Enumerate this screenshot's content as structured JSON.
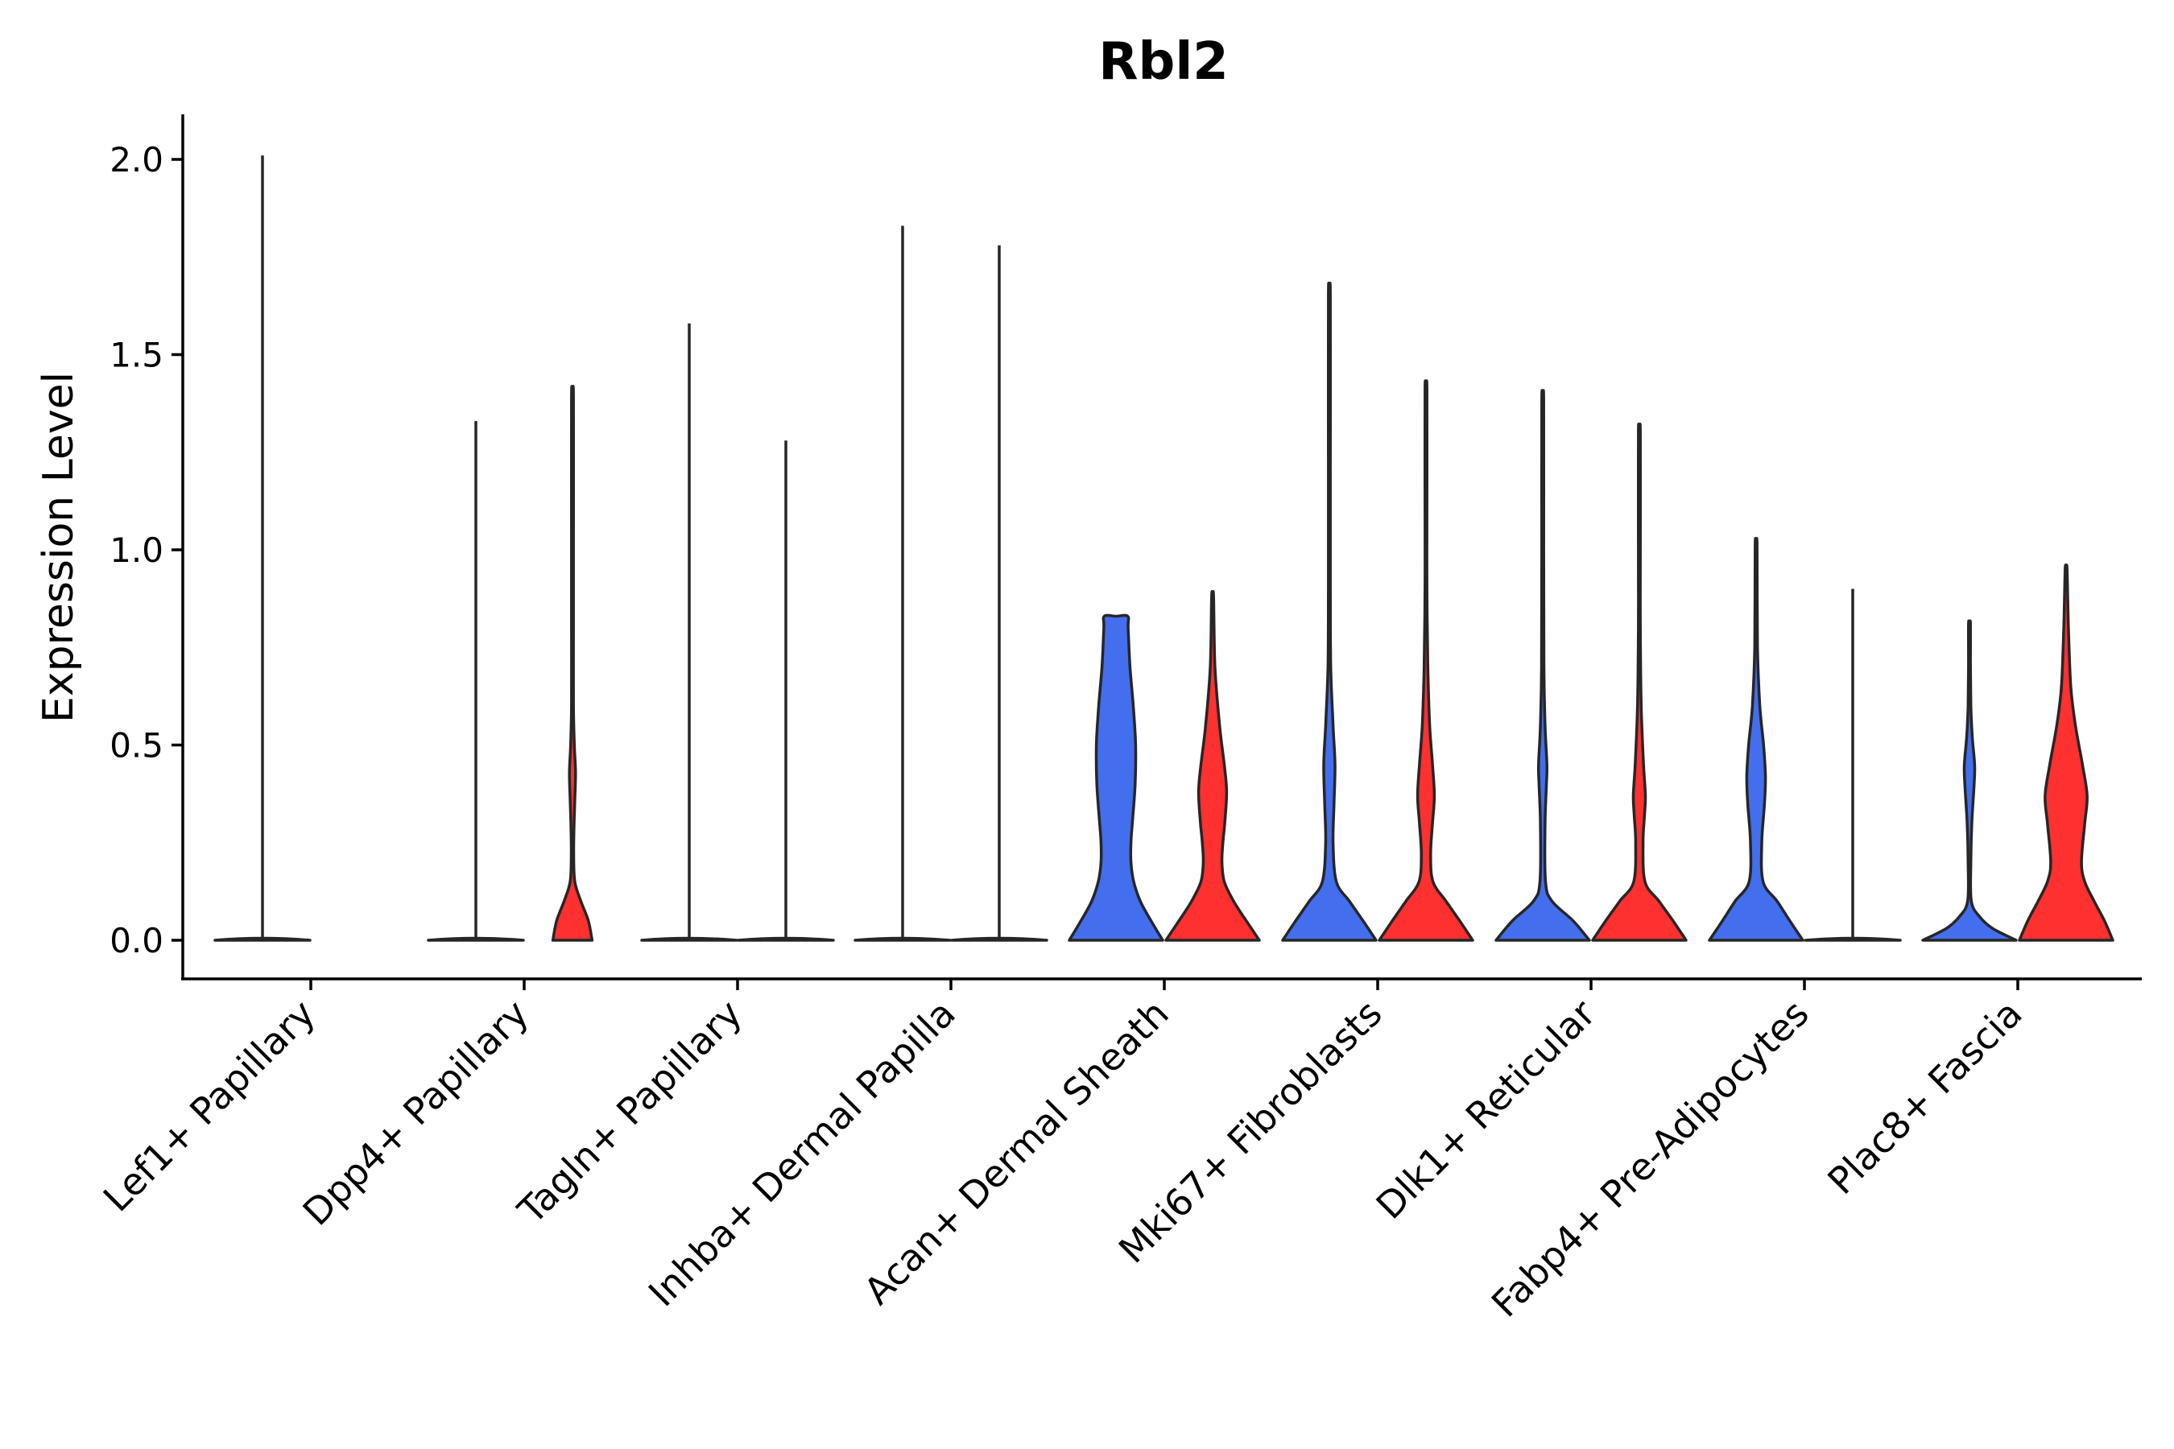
{
  "chart_data": {
    "type": "violin",
    "title": "Rbl2",
    "xlabel": "",
    "ylabel": "Expression Level",
    "ylim": [
      -0.1,
      2.12
    ],
    "yticks": [
      "0.0",
      "0.5",
      "1.0",
      "1.5",
      "2.0"
    ],
    "grid": false,
    "legend": "none",
    "categories": [
      "Lef1+ Papillary",
      "Dpp4+ Papillary",
      "Tagln+ Papillary",
      "Inhba+ Dermal Papilla",
      "Acan+ Dermal Sheath",
      "Mki67+ Fibroblasts",
      "Dlk1+ Reticular",
      "Fabp4+ Pre-Adipocytes",
      "Plac8+ Fascia"
    ],
    "colors": {
      "left": "#436EEE",
      "right": "#FF3030"
    },
    "violins": [
      {
        "category": 0,
        "side": "left",
        "max": 2.01,
        "mode": "line"
      },
      {
        "category": 1,
        "side": "left",
        "max": 1.33,
        "mode": "line"
      },
      {
        "category": 1,
        "side": "right",
        "max": 1.39,
        "mode": "shape",
        "profile": [
          [
            0,
            0.42
          ],
          [
            0.05,
            0.34
          ],
          [
            0.1,
            0.18
          ],
          [
            0.15,
            0.05
          ],
          [
            0.22,
            0.025
          ],
          [
            0.3,
            0.035
          ],
          [
            0.36,
            0.05
          ],
          [
            0.43,
            0.065
          ],
          [
            0.5,
            0.04
          ],
          [
            0.6,
            0.02
          ],
          [
            0.8,
            0.012
          ],
          [
            1.0,
            0.008
          ],
          [
            1.39,
            0
          ]
        ]
      },
      {
        "category": 2,
        "side": "left",
        "max": 1.58,
        "mode": "line"
      },
      {
        "category": 2,
        "side": "right",
        "max": 1.28,
        "mode": "line"
      },
      {
        "category": 3,
        "side": "left",
        "max": 1.83,
        "mode": "line"
      },
      {
        "category": 3,
        "side": "right",
        "max": 1.78,
        "mode": "line"
      },
      {
        "category": 4,
        "side": "left",
        "max": 0.83,
        "mode": "shape",
        "profile": [
          [
            0,
            1.0
          ],
          [
            0.05,
            0.75
          ],
          [
            0.1,
            0.52
          ],
          [
            0.15,
            0.38
          ],
          [
            0.2,
            0.32
          ],
          [
            0.25,
            0.32
          ],
          [
            0.3,
            0.35
          ],
          [
            0.4,
            0.41
          ],
          [
            0.5,
            0.42
          ],
          [
            0.6,
            0.37
          ],
          [
            0.7,
            0.3
          ],
          [
            0.8,
            0.26
          ],
          [
            0.83,
            0.25
          ]
        ]
      },
      {
        "category": 4,
        "side": "right",
        "max": 0.88,
        "mode": "shape",
        "profile": [
          [
            0,
            1.0
          ],
          [
            0.05,
            0.72
          ],
          [
            0.1,
            0.45
          ],
          [
            0.15,
            0.25
          ],
          [
            0.2,
            0.2
          ],
          [
            0.25,
            0.22
          ],
          [
            0.3,
            0.26
          ],
          [
            0.38,
            0.3
          ],
          [
            0.45,
            0.25
          ],
          [
            0.55,
            0.15
          ],
          [
            0.7,
            0.05
          ],
          [
            0.88,
            0
          ]
        ]
      },
      {
        "category": 5,
        "side": "left",
        "max": 1.65,
        "mode": "shape",
        "profile": [
          [
            0,
            1.0
          ],
          [
            0.05,
            0.72
          ],
          [
            0.1,
            0.43
          ],
          [
            0.15,
            0.15
          ],
          [
            0.25,
            0.08
          ],
          [
            0.35,
            0.1
          ],
          [
            0.45,
            0.12
          ],
          [
            0.55,
            0.08
          ],
          [
            0.7,
            0.03
          ],
          [
            0.9,
            0.015
          ],
          [
            1.2,
            0.008
          ],
          [
            1.65,
            0
          ]
        ]
      },
      {
        "category": 5,
        "side": "right",
        "max": 1.41,
        "mode": "shape",
        "profile": [
          [
            0,
            1.0
          ],
          [
            0.05,
            0.72
          ],
          [
            0.1,
            0.43
          ],
          [
            0.15,
            0.15
          ],
          [
            0.22,
            0.1
          ],
          [
            0.3,
            0.14
          ],
          [
            0.37,
            0.18
          ],
          [
            0.45,
            0.14
          ],
          [
            0.55,
            0.08
          ],
          [
            0.7,
            0.04
          ],
          [
            0.9,
            0.02
          ],
          [
            1.1,
            0.008
          ],
          [
            1.41,
            0
          ]
        ]
      },
      {
        "category": 6,
        "side": "left",
        "max": 1.38,
        "mode": "shape",
        "profile": [
          [
            0,
            1.0
          ],
          [
            0.05,
            0.65
          ],
          [
            0.1,
            0.2
          ],
          [
            0.15,
            0.06
          ],
          [
            0.3,
            0.05
          ],
          [
            0.4,
            0.08
          ],
          [
            0.45,
            0.09
          ],
          [
            0.55,
            0.05
          ],
          [
            0.7,
            0.025
          ],
          [
            1.0,
            0.01
          ],
          [
            1.38,
            0
          ]
        ]
      },
      {
        "category": 6,
        "side": "right",
        "max": 1.3,
        "mode": "shape",
        "profile": [
          [
            0,
            1.0
          ],
          [
            0.05,
            0.72
          ],
          [
            0.1,
            0.42
          ],
          [
            0.15,
            0.12
          ],
          [
            0.25,
            0.08
          ],
          [
            0.32,
            0.11
          ],
          [
            0.37,
            0.13
          ],
          [
            0.45,
            0.09
          ],
          [
            0.6,
            0.04
          ],
          [
            0.8,
            0.02
          ],
          [
            1.0,
            0.008
          ],
          [
            1.3,
            0
          ]
        ]
      },
      {
        "category": 7,
        "side": "left",
        "max": 1.01,
        "mode": "shape",
        "profile": [
          [
            0,
            1.0
          ],
          [
            0.05,
            0.72
          ],
          [
            0.1,
            0.45
          ],
          [
            0.15,
            0.15
          ],
          [
            0.25,
            0.12
          ],
          [
            0.35,
            0.18
          ],
          [
            0.42,
            0.2
          ],
          [
            0.5,
            0.16
          ],
          [
            0.6,
            0.08
          ],
          [
            0.75,
            0.03
          ],
          [
            1.01,
            0
          ]
        ]
      },
      {
        "category": 7,
        "side": "right",
        "max": 0.9,
        "mode": "line"
      },
      {
        "category": 8,
        "side": "left",
        "max": 0.81,
        "mode": "shape",
        "profile": [
          [
            0,
            1.0
          ],
          [
            0.03,
            0.5
          ],
          [
            0.06,
            0.22
          ],
          [
            0.1,
            0.04
          ],
          [
            0.2,
            0.03
          ],
          [
            0.3,
            0.05
          ],
          [
            0.4,
            0.1
          ],
          [
            0.45,
            0.11
          ],
          [
            0.52,
            0.06
          ],
          [
            0.6,
            0.03
          ],
          [
            0.7,
            0.02
          ],
          [
            0.81,
            0
          ]
        ]
      },
      {
        "category": 8,
        "side": "right",
        "max": 0.95,
        "mode": "shape",
        "profile": [
          [
            0,
            1.0
          ],
          [
            0.05,
            0.82
          ],
          [
            0.1,
            0.6
          ],
          [
            0.15,
            0.4
          ],
          [
            0.2,
            0.33
          ],
          [
            0.3,
            0.4
          ],
          [
            0.37,
            0.45
          ],
          [
            0.45,
            0.35
          ],
          [
            0.55,
            0.2
          ],
          [
            0.65,
            0.1
          ],
          [
            0.8,
            0.05
          ],
          [
            0.95,
            0
          ]
        ]
      }
    ]
  }
}
